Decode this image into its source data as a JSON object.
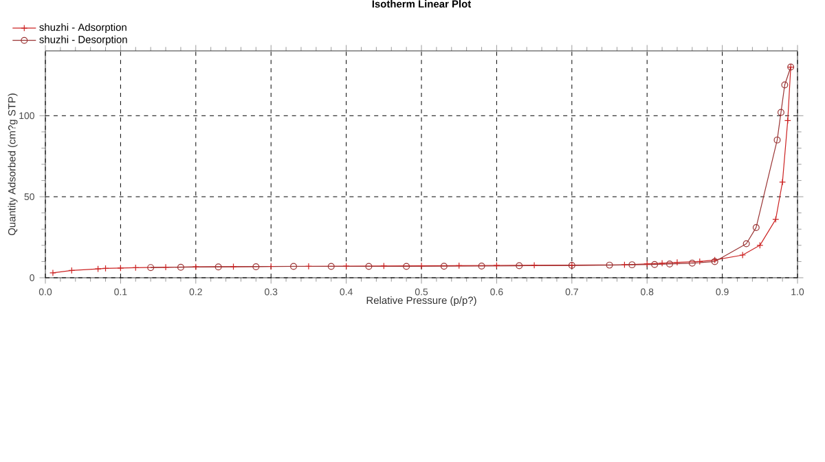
{
  "chart_data": {
    "type": "line",
    "title": "Isotherm Linear Plot",
    "xlabel": "Relative Pressure (p/p?)",
    "ylabel": "Quantity Adsorbed (cm?g STP)",
    "xlim": [
      0,
      1
    ],
    "ylim": [
      0,
      140
    ],
    "xticks": [
      {
        "value": 0,
        "label": "0.0"
      },
      0.1,
      0.2,
      0.3,
      0.4,
      0.5,
      0.6,
      0.7,
      0.8,
      0.9,
      {
        "value": 1,
        "label": "1.0"
      }
    ],
    "yticks": [
      0,
      50,
      100
    ],
    "grid": true,
    "legend": "top left",
    "line_style": "solid",
    "series": [
      {
        "name": "shuzhi - Adsorption",
        "color": "#cc2222",
        "marker": "cross",
        "x": [
          0.01,
          0.035,
          0.07,
          0.08,
          0.1,
          0.12,
          0.16,
          0.2,
          0.25,
          0.3,
          0.35,
          0.4,
          0.45,
          0.5,
          0.55,
          0.6,
          0.65,
          0.7,
          0.77,
          0.8,
          0.82,
          0.84,
          0.87,
          0.89,
          0.927,
          0.95,
          0.971,
          0.98,
          0.987,
          0.991
        ],
        "values": [
          3,
          4.5,
          5.5,
          5.8,
          6,
          6.2,
          6.5,
          6.7,
          6.8,
          7,
          7.1,
          7.2,
          7.3,
          7.4,
          7.5,
          7.6,
          7.7,
          7.8,
          8,
          8.5,
          9,
          9.5,
          10,
          11,
          14,
          20,
          36,
          59,
          97,
          130
        ]
      },
      {
        "name": "shuzhi - Desorption",
        "color": "#993333",
        "marker": "circle",
        "x": [
          0.991,
          0.983,
          0.978,
          0.973,
          0.945,
          0.932,
          0.89,
          0.86,
          0.83,
          0.81,
          0.78,
          0.75,
          0.7,
          0.63,
          0.58,
          0.53,
          0.48,
          0.43,
          0.38,
          0.33,
          0.28,
          0.23,
          0.18,
          0.14
        ],
        "values": [
          130,
          119,
          102,
          85,
          31,
          21,
          10,
          9,
          8.5,
          8.2,
          8,
          7.8,
          7.6,
          7.4,
          7.2,
          7.1,
          7,
          7,
          7,
          7,
          6.8,
          6.7,
          6.5,
          6.3
        ]
      }
    ]
  }
}
